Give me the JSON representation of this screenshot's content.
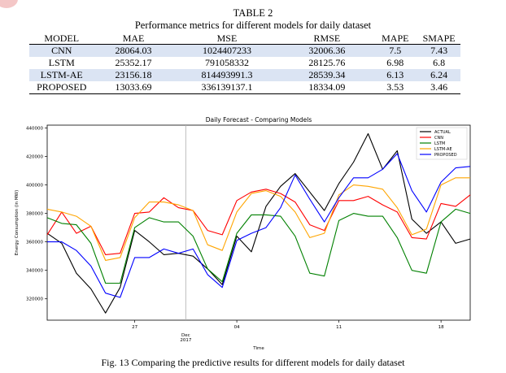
{
  "table": {
    "label": "TABLE 2",
    "title": "Performance metrics for different models for daily dataset",
    "headers": [
      "MODEL",
      "MAE",
      "MSE",
      "RMSE",
      "MAPE",
      "SMAPE"
    ],
    "rows": [
      [
        "CNN",
        "28064.03",
        "1024407233",
        "32006.36",
        "7.5",
        "7.43"
      ],
      [
        "LSTM",
        "25352.17",
        "791058332",
        "28125.76",
        "6.98",
        "6.8"
      ],
      [
        "LSTM-AE",
        "23156.18",
        "814493991.3",
        "28539.34",
        "6.13",
        "6.24"
      ],
      [
        "PROPOSED",
        "13033.69",
        "336139137.1",
        "18334.09",
        "3.53",
        "3.46"
      ]
    ],
    "shade_color": "#dbe4f3"
  },
  "figure": {
    "caption": "Fig. 13 Comparing the predictive results for different models for daily dataset"
  },
  "chart_data": {
    "type": "line",
    "title": "Daily Forecast - Comparing Models",
    "xlabel": "Time",
    "ylabel": "Energy Consumption (in MW)",
    "ylim": [
      305000,
      442000
    ],
    "x_tick_labels": [
      "27",
      "04",
      "11",
      "18"
    ],
    "x_tick_positions": [
      6,
      13,
      20,
      27
    ],
    "x_month_label": [
      "Dec",
      "2017"
    ],
    "y_ticks": [
      320000,
      340000,
      360000,
      380000,
      400000,
      420000,
      440000
    ],
    "y_tick_labels": [
      "320000",
      "340000",
      "360000",
      "380000",
      "400000",
      "420000",
      "440000"
    ],
    "grid": "vertical line at Dec 2017",
    "legend_position": "top-right",
    "x": [
      0,
      1,
      2,
      3,
      4,
      5,
      6,
      7,
      8,
      9,
      10,
      11,
      12,
      13,
      14,
      15,
      16,
      17,
      18,
      19,
      20,
      21,
      22,
      23,
      24,
      25,
      26,
      27,
      28,
      29
    ],
    "series": [
      {
        "name": "ACTUAL",
        "color": "#000000",
        "values": [
          366000,
          359000,
          338000,
          327000,
          310000,
          328000,
          368000,
          360000,
          351000,
          352000,
          350000,
          341000,
          330000,
          364000,
          353000,
          385000,
          399000,
          408000,
          395000,
          382000,
          401000,
          416000,
          436000,
          411000,
          424000,
          376000,
          366000,
          374000,
          359000,
          362000
        ]
      },
      {
        "name": "CNN",
        "color": "#ff0000",
        "values": [
          365000,
          381000,
          366000,
          371000,
          351000,
          352000,
          380000,
          381000,
          391000,
          384000,
          382000,
          368000,
          365000,
          389000,
          395000,
          397000,
          394000,
          388000,
          372000,
          368000,
          389000,
          389000,
          392000,
          386000,
          381000,
          363000,
          362000,
          387000,
          385000,
          393000
        ]
      },
      {
        "name": "LSTM",
        "color": "#008000",
        "values": [
          377000,
          373000,
          372000,
          359000,
          331000,
          331000,
          370000,
          377000,
          374000,
          374000,
          364000,
          341000,
          332000,
          366000,
          379000,
          379000,
          378000,
          364000,
          338000,
          336000,
          375000,
          380000,
          378000,
          378000,
          363000,
          340000,
          338000,
          374000,
          383000,
          380000
        ]
      },
      {
        "name": "LSTM-AE",
        "color": "#ffa500",
        "values": [
          383000,
          381000,
          378000,
          371000,
          347000,
          349000,
          377000,
          388000,
          388000,
          386000,
          382000,
          358000,
          354000,
          381000,
          394000,
          396000,
          392000,
          381000,
          363000,
          366000,
          393000,
          400000,
          399000,
          397000,
          384000,
          365000,
          369000,
          400000,
          405000,
          405000
        ]
      },
      {
        "name": "PROPOSED",
        "color": "#0000ff",
        "values": [
          360000,
          360000,
          354000,
          343000,
          324000,
          321000,
          349000,
          349000,
          355000,
          352000,
          355000,
          337000,
          328000,
          361000,
          366000,
          370000,
          384000,
          407000,
          390000,
          374000,
          391000,
          405000,
          405000,
          411000,
          422000,
          396000,
          381000,
          402000,
          412000,
          413000
        ]
      }
    ]
  }
}
